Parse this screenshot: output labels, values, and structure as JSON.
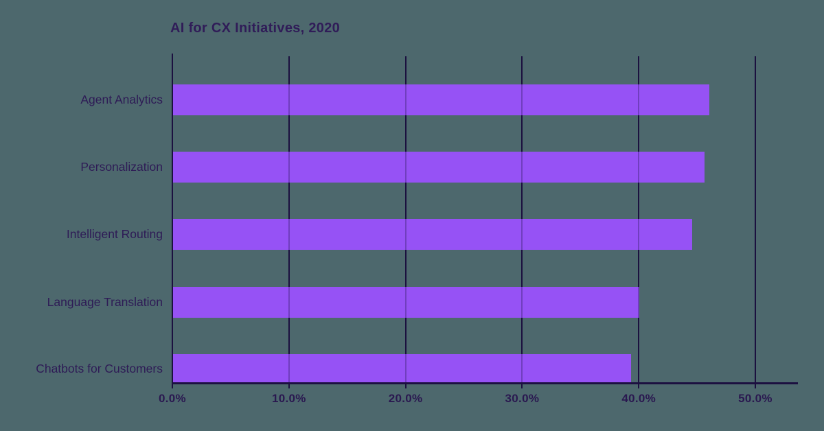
{
  "chart_data": {
    "type": "bar",
    "orientation": "horizontal",
    "title": "AI for CX Initiatives, 2020",
    "categories": [
      "Agent Analytics",
      "Personalization",
      "Intelligent Routing",
      "Language Translation",
      "Chatbots for Customers"
    ],
    "values": [
      46.0,
      45.6,
      44.5,
      40.0,
      39.3
    ],
    "unit": "percent",
    "xlabel": "",
    "ylabel": "",
    "x_tick_values": [
      0,
      10,
      20,
      30,
      40,
      50
    ],
    "x_tick_labels": [
      "0.0%",
      "10.0%",
      "20.0%",
      "30.0%",
      "40.0%",
      "50.0%"
    ],
    "xlim": [
      0,
      53.7
    ],
    "grid": "vertical-gridlines-on",
    "legend_position": "none",
    "colors": {
      "bar": "#9652f5",
      "background": "#4d686d",
      "gridline": "#1c1040",
      "axis": "#1c1040",
      "title_text": "#301c58",
      "label_text": "#2e1b56",
      "tick_text": "#2a1850"
    }
  }
}
